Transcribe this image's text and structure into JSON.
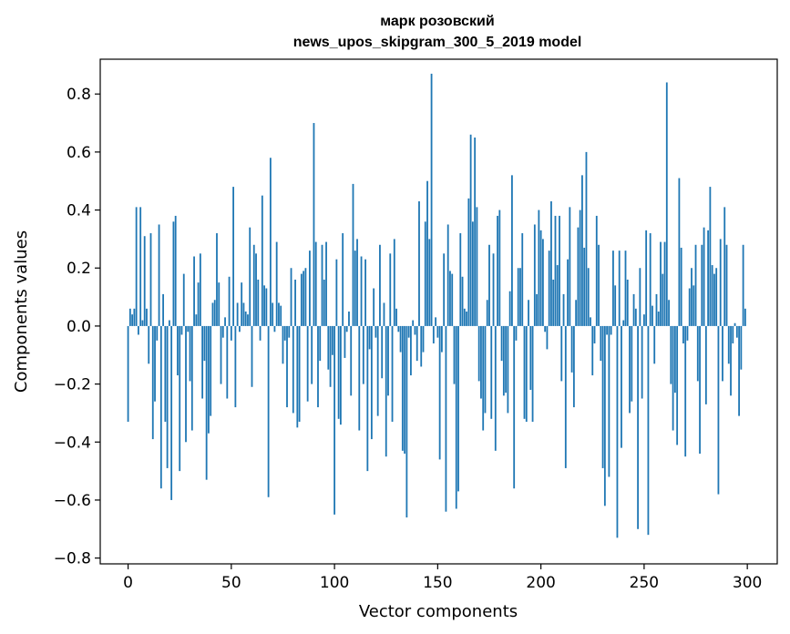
{
  "chart_data": {
    "type": "bar",
    "title_line1": "марк розовский",
    "title_line2": "news_upos_skipgram_300_5_2019 model",
    "xlabel": "Vector components",
    "ylabel": "Components values",
    "xlim": [
      -13.5,
      314.5
    ],
    "ylim": [
      -0.82,
      0.92
    ],
    "xticks": [
      0,
      50,
      100,
      150,
      200,
      250,
      300
    ],
    "xtick_labels": [
      "0",
      "50",
      "100",
      "150",
      "200",
      "250",
      "300"
    ],
    "yticks": [
      -0.8,
      -0.6,
      -0.4,
      -0.2,
      0.0,
      0.2,
      0.4,
      0.6,
      0.8
    ],
    "ytick_labels": [
      "−0.8",
      "−0.6",
      "−0.4",
      "−0.2",
      "0.0",
      "0.2",
      "0.4",
      "0.6",
      "0.8"
    ],
    "bar_color": "#1f77b4",
    "values": [
      -0.33,
      0.06,
      0.04,
      0.06,
      0.41,
      -0.03,
      0.41,
      0.02,
      0.31,
      0.06,
      -0.13,
      0.32,
      -0.39,
      -0.26,
      -0.05,
      0.35,
      -0.56,
      0.11,
      -0.33,
      -0.49,
      0.02,
      -0.6,
      0.36,
      0.38,
      -0.17,
      -0.5,
      -0.03,
      0.18,
      -0.4,
      -0.02,
      -0.19,
      -0.36,
      0.24,
      0.04,
      0.15,
      0.25,
      -0.25,
      -0.12,
      -0.53,
      -0.37,
      -0.31,
      0.08,
      0.09,
      0.32,
      0.15,
      -0.2,
      -0.04,
      0.03,
      -0.25,
      0.17,
      -0.05,
      0.48,
      -0.28,
      0.08,
      -0.02,
      0.15,
      0.08,
      0.05,
      0.04,
      0.34,
      -0.21,
      0.28,
      0.25,
      0.16,
      -0.05,
      0.45,
      0.14,
      0.13,
      -0.59,
      0.58,
      0.08,
      -0.02,
      0.29,
      0.08,
      0.07,
      -0.13,
      -0.05,
      -0.28,
      -0.04,
      0.2,
      -0.3,
      0.16,
      -0.35,
      -0.33,
      0.18,
      0.19,
      0.2,
      -0.26,
      0.26,
      -0.2,
      0.7,
      0.29,
      -0.28,
      -0.12,
      0.28,
      0.16,
      0.29,
      -0.15,
      -0.21,
      -0.1,
      -0.65,
      0.23,
      -0.32,
      -0.34,
      0.32,
      -0.11,
      -0.02,
      0.05,
      -0.24,
      0.49,
      0.26,
      0.3,
      -0.36,
      0.24,
      -0.2,
      0.23,
      -0.5,
      -0.08,
      -0.39,
      0.13,
      -0.04,
      -0.31,
      0.28,
      -0.18,
      0.08,
      -0.45,
      -0.24,
      0.25,
      -0.33,
      0.3,
      0.06,
      -0.02,
      -0.09,
      -0.43,
      -0.44,
      -0.66,
      -0.04,
      -0.17,
      0.02,
      -0.03,
      -0.12,
      0.43,
      -0.14,
      -0.09,
      0.36,
      0.5,
      0.3,
      0.87,
      -0.06,
      0.03,
      -0.04,
      -0.46,
      -0.09,
      0.25,
      -0.64,
      0.35,
      0.19,
      0.18,
      -0.2,
      -0.63,
      -0.57,
      0.32,
      0.17,
      0.06,
      0.05,
      0.44,
      0.66,
      0.36,
      0.65,
      0.41,
      -0.19,
      -0.25,
      -0.36,
      -0.3,
      0.09,
      0.28,
      -0.32,
      0.25,
      -0.43,
      0.38,
      0.4,
      -0.12,
      -0.24,
      -0.23,
      -0.3,
      0.12,
      0.52,
      -0.56,
      -0.05,
      0.2,
      0.2,
      0.32,
      -0.32,
      -0.33,
      0.09,
      -0.22,
      -0.33,
      0.35,
      0.11,
      0.4,
      0.33,
      0.3,
      -0.02,
      -0.08,
      0.26,
      0.43,
      0.16,
      0.38,
      0.21,
      0.38,
      -0.19,
      0.11,
      -0.49,
      0.23,
      0.41,
      -0.16,
      -0.28,
      0.09,
      0.34,
      0.4,
      0.52,
      0.27,
      0.6,
      0.2,
      0.03,
      -0.17,
      -0.06,
      0.38,
      0.28,
      -0.12,
      -0.49,
      -0.62,
      -0.03,
      -0.52,
      -0.03,
      0.26,
      0.14,
      -0.73,
      0.26,
      -0.42,
      0.02,
      0.26,
      0.16,
      -0.3,
      -0.26,
      0.11,
      0.06,
      -0.7,
      0.2,
      -0.25,
      0.04,
      0.33,
      -0.72,
      0.32,
      0.07,
      -0.13,
      0.11,
      0.05,
      0.29,
      0.18,
      0.29,
      0.84,
      0.09,
      -0.2,
      -0.36,
      -0.23,
      -0.41,
      0.51,
      0.27,
      -0.06,
      -0.45,
      -0.05,
      0.13,
      0.2,
      0.14,
      0.28,
      -0.19,
      -0.44,
      0.28,
      0.34,
      -0.27,
      0.33,
      0.48,
      0.21,
      0.18,
      0.2,
      -0.58,
      0.3,
      -0.19,
      0.41,
      0.28,
      -0.13,
      -0.24,
      -0.06,
      0.01,
      -0.04,
      -0.31,
      -0.15,
      0.28,
      0.06
    ]
  }
}
